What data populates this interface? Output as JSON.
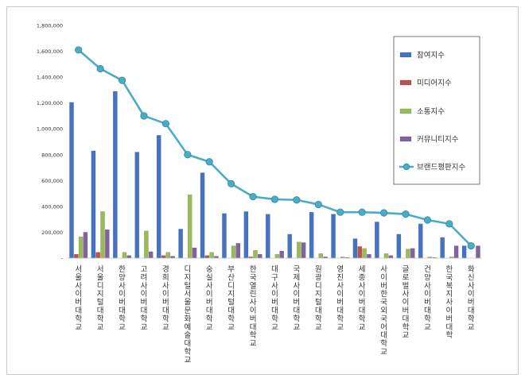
{
  "chart_data": {
    "type": "bar",
    "title": "",
    "xlabel": "",
    "ylabel": "",
    "ylim": [
      0,
      1800000
    ],
    "yticks": [
      0,
      200000,
      400000,
      600000,
      800000,
      1000000,
      1200000,
      1400000,
      1600000,
      1800000
    ],
    "ytick_labels": [
      "-",
      "200,000",
      "400,000",
      "600,000",
      "800,000",
      "1,000,000",
      "1,200,000",
      "1,400,000",
      "1,600,000",
      "1,800,000"
    ],
    "legend_position": "right",
    "categories": [
      "서울사이버대학교",
      "서울디지털대학교",
      "한양사이버대학교",
      "고려사이버대학교",
      "경희사이버대학교",
      "디지털서울문화예술대학교",
      "숭실사이버대학교",
      "부산디지털대학교",
      "한국열린사이버대학교",
      "대구사이버대학교",
      "국제사이버대학교",
      "원광디지털대학교",
      "영진사이버대학교",
      "세종사이버대학교",
      "사이버한국외국어대학교",
      "글로벌사이버대학교",
      "건양사이버대학교",
      "한국복지사이버대학",
      "화신사이버대학교"
    ],
    "series": [
      {
        "name": "참여지수",
        "kind": "bar",
        "color": "#4472c4",
        "values": [
          1205000,
          830000,
          1290000,
          820000,
          950000,
          225000,
          660000,
          345000,
          360000,
          340000,
          185000,
          355000,
          340000,
          150000,
          280000,
          185000,
          265000,
          160000,
          95000
        ]
      },
      {
        "name": "미디어지수",
        "kind": "bar",
        "color": "#c0504d",
        "values": [
          30000,
          45000,
          0,
          0,
          20000,
          0,
          20000,
          0,
          10000,
          0,
          0,
          0,
          0,
          90000,
          0,
          0,
          0,
          0,
          0
        ]
      },
      {
        "name": "소통지수",
        "kind": "bar",
        "color": "#9bbb59",
        "values": [
          165000,
          360000,
          45000,
          210000,
          45000,
          490000,
          45000,
          95000,
          60000,
          30000,
          125000,
          35000,
          10000,
          75000,
          35000,
          70000,
          10000,
          10000,
          0
        ]
      },
      {
        "name": "커뮤니티지수",
        "kind": "bar",
        "color": "#8064a2",
        "values": [
          200000,
          220000,
          20000,
          50000,
          15000,
          80000,
          15000,
          115000,
          30000,
          55000,
          120000,
          10000,
          5000,
          30000,
          20000,
          75000,
          5000,
          95000,
          95000
        ]
      },
      {
        "name": "브랜드평판지수",
        "kind": "line",
        "color": "#4bacc6",
        "values": [
          1610000,
          1465000,
          1375000,
          1100000,
          1040000,
          800000,
          745000,
          575000,
          475000,
          455000,
          450000,
          415000,
          355000,
          355000,
          350000,
          340000,
          295000,
          265000,
          95000
        ]
      }
    ]
  }
}
